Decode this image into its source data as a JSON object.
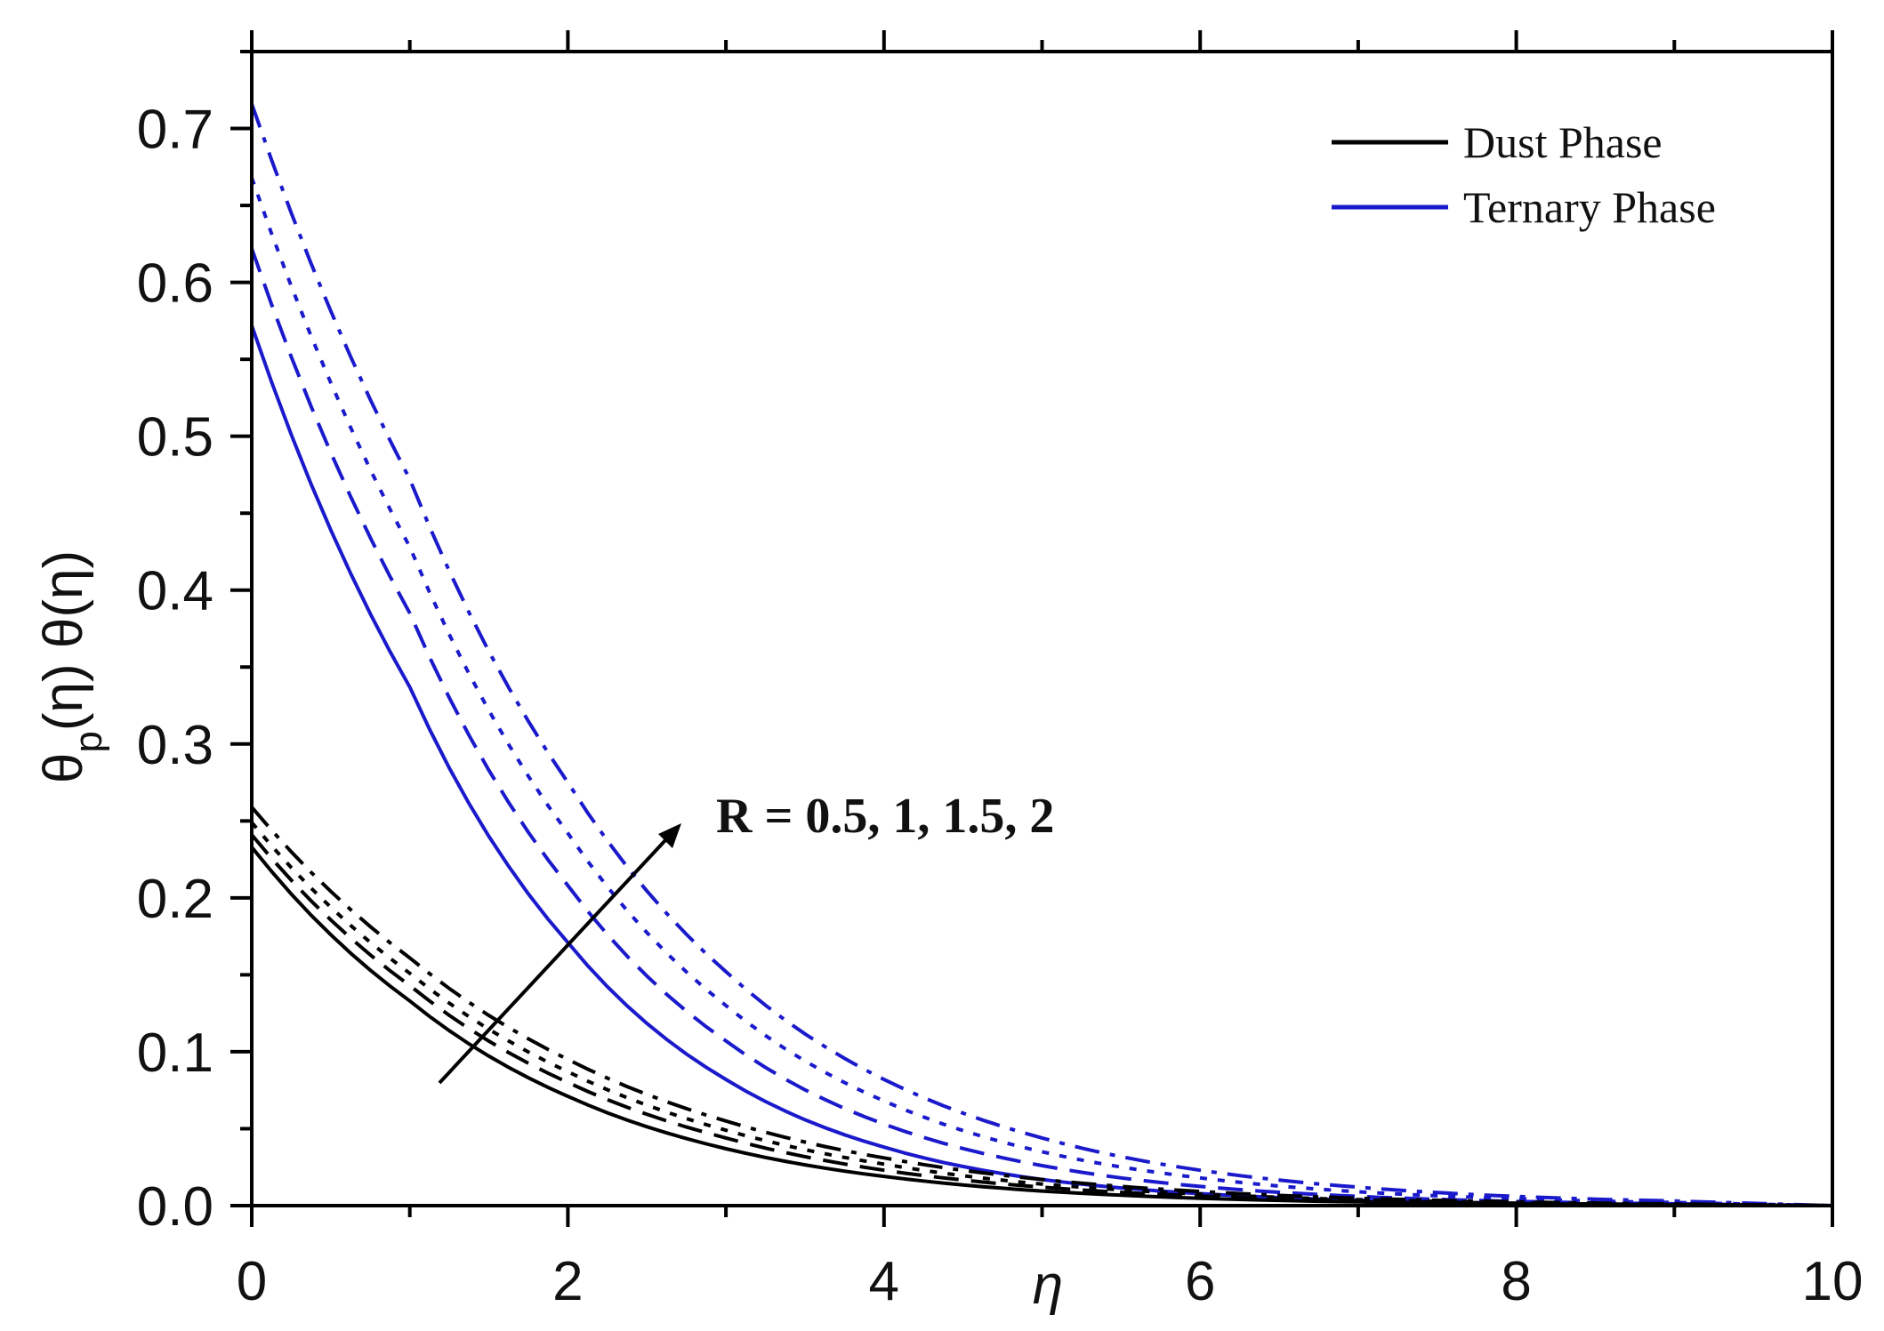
{
  "chart_data": {
    "type": "line",
    "title": "",
    "xlabel": "η",
    "ylabel_main": "θ",
    "ylabel_sub": "p",
    "ylabel_rest": "(η) θ(η)",
    "xlim": [
      0,
      10
    ],
    "ylim": [
      0,
      0.75
    ],
    "x_ticks": [
      0,
      2,
      4,
      6,
      8,
      10
    ],
    "x_tick_labels": [
      "0",
      "2",
      "4",
      "6",
      "8",
      "10"
    ],
    "y_ticks": [
      0,
      0.1,
      0.2,
      0.3,
      0.4,
      0.5,
      0.6,
      0.7
    ],
    "y_tick_labels": [
      "0.0",
      "0.1",
      "0.2",
      "0.3",
      "0.4",
      "0.5",
      "0.6",
      "0.7"
    ],
    "grid": false,
    "legend_position": "top-right",
    "legend": [
      {
        "label": "Dust  Phase",
        "color": "#000000"
      },
      {
        "label": "Ternary  Phase",
        "color": "#1a1acc"
      }
    ],
    "annotation": "R = 0.5, 1, 1.5, 2",
    "x": [
      0,
      1,
      2,
      3,
      4,
      5,
      6,
      7,
      8,
      9,
      10
    ],
    "series": [
      {
        "phase": "Ternary",
        "R": 0.5,
        "color": "#1a1acc",
        "dash": "solid",
        "values": [
          0.572,
          0.337,
          0.171,
          0.082,
          0.038,
          0.017,
          0.0078,
          0.0035,
          0.0015,
          0.0005,
          0.0
        ]
      },
      {
        "phase": "Ternary",
        "R": 1,
        "color": "#1a1acc",
        "dash": "dash",
        "values": [
          0.622,
          0.385,
          0.208,
          0.107,
          0.053,
          0.026,
          0.0125,
          0.006,
          0.0028,
          0.0012,
          0.0
        ]
      },
      {
        "phase": "Ternary",
        "R": 1.5,
        "color": "#1a1acc",
        "dash": "dot",
        "values": [
          0.668,
          0.428,
          0.242,
          0.13,
          0.068,
          0.035,
          0.018,
          0.009,
          0.0045,
          0.002,
          0.0
        ]
      },
      {
        "phase": "Ternary",
        "R": 2,
        "color": "#1a1acc",
        "dash": "dashdot",
        "values": [
          0.716,
          0.472,
          0.275,
          0.152,
          0.082,
          0.044,
          0.023,
          0.012,
          0.006,
          0.003,
          0.0
        ]
      },
      {
        "phase": "Dust",
        "R": 0.5,
        "color": "#000000",
        "dash": "solid",
        "values": [
          0.233,
          0.133,
          0.071,
          0.037,
          0.019,
          0.0095,
          0.0048,
          0.0024,
          0.0012,
          0.0005,
          0.0
        ]
      },
      {
        "phase": "Dust",
        "R": 1,
        "color": "#000000",
        "dash": "dash",
        "values": [
          0.241,
          0.143,
          0.08,
          0.044,
          0.023,
          0.012,
          0.0062,
          0.0032,
          0.0016,
          0.0007,
          0.0
        ]
      },
      {
        "phase": "Dust",
        "R": 1.5,
        "color": "#000000",
        "dash": "dot",
        "values": [
          0.249,
          0.151,
          0.087,
          0.049,
          0.027,
          0.014,
          0.0075,
          0.0039,
          0.002,
          0.0009,
          0.0
        ]
      },
      {
        "phase": "Dust",
        "R": 2,
        "color": "#000000",
        "dash": "dashdot",
        "values": [
          0.259,
          0.161,
          0.095,
          0.055,
          0.031,
          0.017,
          0.0092,
          0.0048,
          0.0025,
          0.0011,
          0.0
        ]
      }
    ]
  }
}
